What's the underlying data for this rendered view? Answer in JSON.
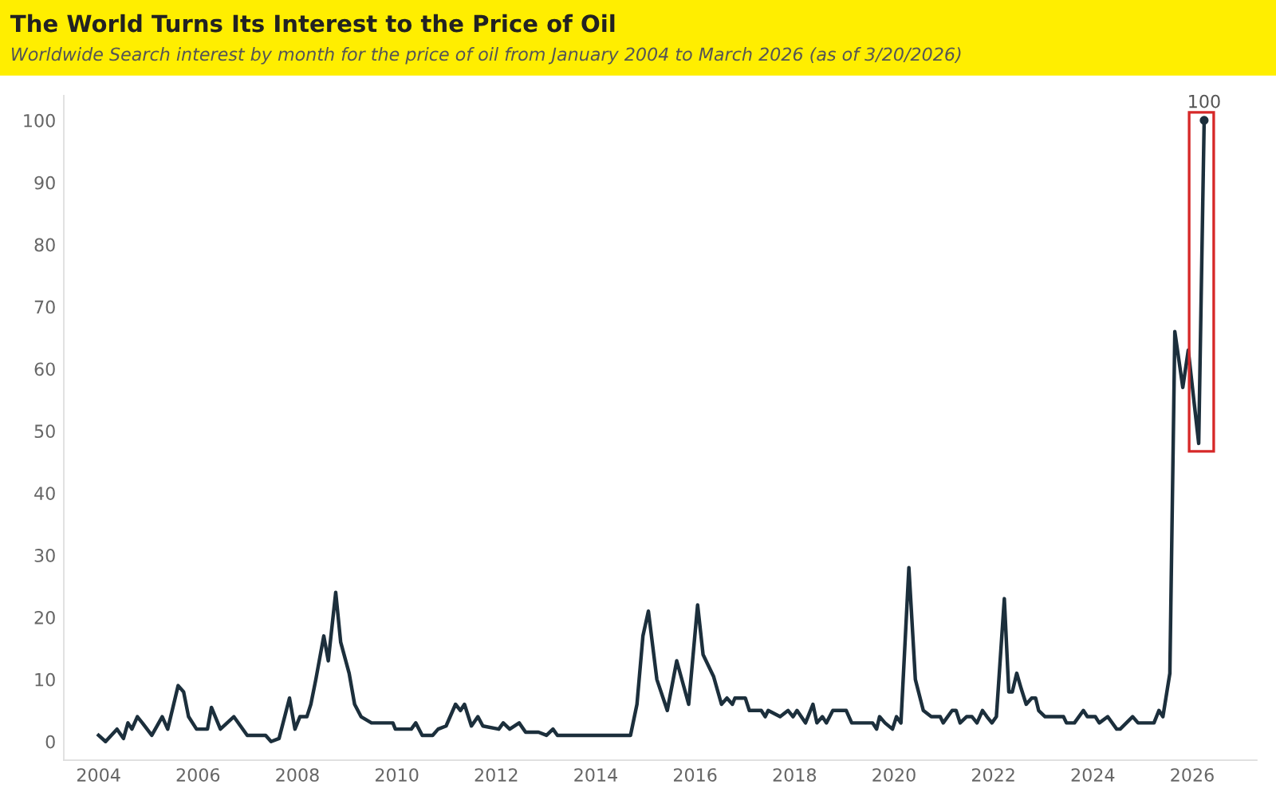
{
  "chart_data": {
    "type": "line",
    "title": "The World Turns Its Interest to the Price of Oil",
    "subtitle": "Worldwide Search interest by month for the price of oil from January 2004 to March 2026 (as of 3/20/2026)",
    "x": [
      2004.0,
      2004.14,
      2004.37,
      2004.5,
      2004.59,
      2004.67,
      2004.78,
      2004.88,
      2005.07,
      2005.28,
      2005.39,
      2005.6,
      2005.71,
      2005.81,
      2005.97,
      2006.19,
      2006.27,
      2006.45,
      2006.72,
      2006.99,
      2007.15,
      2007.36,
      2007.47,
      2007.63,
      2007.84,
      2007.95,
      2008.05,
      2008.19,
      2008.27,
      2008.37,
      2008.53,
      2008.62,
      2008.77,
      2008.87,
      2009.04,
      2009.15,
      2009.28,
      2009.49,
      2009.92,
      2009.97,
      2010.29,
      2010.38,
      2010.51,
      2010.72,
      2010.83,
      2010.99,
      2011.18,
      2011.28,
      2011.36,
      2011.5,
      2011.63,
      2011.73,
      2012.05,
      2012.14,
      2012.27,
      2012.46,
      2012.59,
      2012.85,
      2013.01,
      2013.14,
      2013.23,
      2014.7,
      2014.83,
      2014.95,
      2015.06,
      2015.23,
      2015.44,
      2015.63,
      2015.87,
      2016.05,
      2016.16,
      2016.37,
      2016.53,
      2016.64,
      2016.75,
      2016.8,
      2017.01,
      2017.09,
      2017.33,
      2017.41,
      2017.47,
      2017.71,
      2017.87,
      2017.97,
      2018.05,
      2018.22,
      2018.37,
      2018.45,
      2018.56,
      2018.64,
      2018.77,
      2019.04,
      2019.15,
      2019.57,
      2019.65,
      2019.71,
      2019.82,
      2019.97,
      2020.05,
      2020.14,
      2020.3,
      2020.43,
      2020.59,
      2020.75,
      2020.93,
      2020.99,
      2021.17,
      2021.25,
      2021.33,
      2021.46,
      2021.57,
      2021.67,
      2021.78,
      2021.87,
      2021.97,
      2022.06,
      2022.22,
      2022.31,
      2022.38,
      2022.47,
      2022.56,
      2022.66,
      2022.77,
      2022.85,
      2022.91,
      2023.04,
      2023.41,
      2023.47,
      2023.63,
      2023.81,
      2023.89,
      2024.05,
      2024.13,
      2024.3,
      2024.48,
      2024.55,
      2024.8,
      2024.91,
      2025.23,
      2025.33,
      2025.41,
      2025.55,
      2025.65,
      2025.81,
      2025.92,
      2026.13,
      2026.24
    ],
    "series": [
      {
        "color": "#1c2f3c",
        "values": [
          1,
          0,
          2,
          0.5,
          3,
          2,
          4,
          3,
          1,
          4,
          2,
          9,
          8,
          4,
          2,
          2,
          5.5,
          2,
          4,
          1,
          1,
          1,
          0,
          0.5,
          7,
          2,
          4,
          4,
          6,
          10,
          17,
          13,
          24,
          16,
          11,
          6,
          4,
          3,
          3,
          2,
          2,
          3,
          1,
          1,
          2,
          2.5,
          6,
          5,
          6,
          2.5,
          4,
          2.5,
          2,
          3,
          2,
          3,
          1.5,
          1.5,
          1,
          2,
          1,
          1,
          6,
          17,
          21,
          10,
          5,
          13,
          6,
          22,
          14,
          10.5,
          6,
          7,
          6,
          7,
          7,
          5,
          5,
          4,
          5,
          4,
          5,
          4,
          5,
          3,
          6,
          3,
          4,
          3,
          5,
          5,
          3,
          3,
          2,
          4,
          3,
          2,
          4,
          3,
          28,
          10,
          5,
          4,
          4,
          3,
          5,
          5,
          3,
          4,
          4,
          3,
          5,
          4,
          3,
          4,
          23,
          8,
          8,
          11,
          8.5,
          6,
          7,
          7,
          5,
          4,
          4,
          3,
          3,
          5,
          4,
          4,
          3,
          4,
          2,
          2,
          4,
          3,
          3,
          5,
          4,
          11,
          66,
          57,
          63,
          48,
          100
        ]
      }
    ],
    "xlim": [
      2003.3,
      2027.3
    ],
    "xticks": [
      2004,
      2006,
      2008,
      2010,
      2012,
      2014,
      2016,
      2018,
      2020,
      2022,
      2024,
      2026
    ],
    "ylim": [
      -3,
      104
    ],
    "yticks": [
      0,
      10,
      20,
      30,
      40,
      50,
      60,
      70,
      80,
      90,
      100
    ],
    "grid": false,
    "marker": "none",
    "line_style": "solid",
    "annotations": [
      {
        "text": "100",
        "x": 2026.24,
        "y": 100
      }
    ]
  }
}
